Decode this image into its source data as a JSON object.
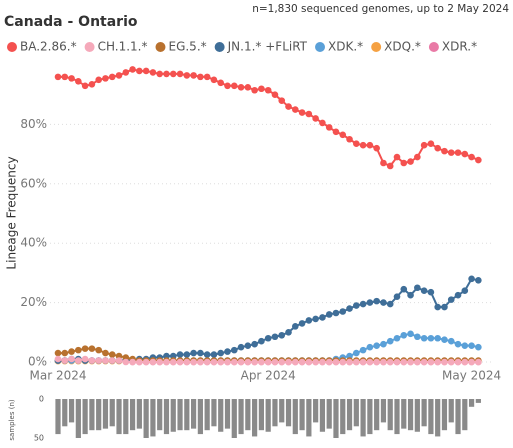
{
  "chart_data": [
    {
      "type": "line",
      "title": "Canada - Ontario",
      "subtitle": "n=1,830 sequenced genomes, up to 2 May 2024",
      "y_label": "Lineage Frequency",
      "categories": [
        "Mar 2024",
        null,
        null,
        null,
        null,
        null,
        null,
        null,
        null,
        null,
        null,
        null,
        null,
        null,
        null,
        null,
        null,
        null,
        null,
        null,
        null,
        null,
        null,
        null,
        null,
        null,
        null,
        null,
        null,
        null,
        null,
        "Apr 2024",
        null,
        null,
        null,
        null,
        null,
        null,
        null,
        null,
        null,
        null,
        null,
        null,
        null,
        null,
        null,
        null,
        null,
        null,
        null,
        null,
        null,
        null,
        null,
        null,
        null,
        null,
        null,
        null,
        null,
        "May 2024",
        null
      ],
      "ylim": [
        0,
        100
      ],
      "yticks": [
        {
          "value": 0,
          "label": "0%"
        },
        {
          "value": 20,
          "label": "20%"
        },
        {
          "value": 40,
          "label": "40%"
        },
        {
          "value": 60,
          "label": "60%"
        },
        {
          "value": 80,
          "label": "80%"
        }
      ],
      "grid": true,
      "series": [
        {
          "name": "BA.2.86.*",
          "color": "#f4514f",
          "values": [
            96,
            96,
            95.5,
            94.5,
            93,
            93.5,
            95,
            95.5,
            96,
            96.5,
            97.5,
            98.5,
            98,
            98,
            97.5,
            97,
            97,
            97,
            97,
            96.5,
            96.5,
            96,
            96,
            95,
            94,
            93,
            93,
            92.5,
            92.5,
            91.5,
            92,
            91.5,
            90,
            88,
            86,
            85,
            84,
            83.5,
            82,
            80.5,
            79,
            77.5,
            76.5,
            75,
            73.5,
            73,
            73,
            72,
            67,
            66,
            69,
            67,
            67.5,
            69,
            73,
            73.5,
            72,
            71,
            70.5,
            70.5,
            70,
            69,
            68
          ]
        },
        {
          "name": "CH.1.1.*",
          "color": "#f5a9ba",
          "values": [
            1,
            0.5,
            1,
            0.5,
            1,
            0.5,
            0.5,
            0.5,
            0.5,
            0.5,
            0,
            0,
            0,
            0,
            0,
            0,
            0,
            0,
            0,
            0,
            0,
            0,
            0,
            0,
            0,
            0,
            0,
            0,
            0,
            0,
            0,
            0,
            0,
            0,
            0,
            0,
            0,
            0,
            0,
            0,
            0,
            0,
            0,
            0,
            0,
            0,
            0,
            0,
            0,
            0,
            0,
            0,
            0,
            0,
            0,
            0,
            0,
            0,
            0,
            0,
            0,
            0,
            0
          ]
        },
        {
          "name": "EG.5.*",
          "color": "#b8712e",
          "values": [
            3,
            3,
            3.5,
            4,
            4.5,
            4.5,
            4,
            3,
            2.5,
            2,
            1.5,
            1,
            0.5,
            0.5,
            0.5,
            0.5,
            0.5,
            0.5,
            0.5,
            0.5,
            0.5,
            0.5,
            0.5,
            0.5,
            0.5,
            0.5,
            0.5,
            0.5,
            0.5,
            0.5,
            0.5,
            0.5,
            0.5,
            0.5,
            0.5,
            0.5,
            0.5,
            0.5,
            0.5,
            0.5,
            0.5,
            0.5,
            0.5,
            0.5,
            0.5,
            0.5,
            0.5,
            0.5,
            0.5,
            0.5,
            0.5,
            0.5,
            0.5,
            0.5,
            0.5,
            0.5,
            0.5,
            0.5,
            0.5,
            0.5,
            0.5,
            0.5,
            0.5
          ]
        },
        {
          "name": "JN.1.* +FLiRT",
          "color": "#3f6e98",
          "values": [
            0.5,
            0.5,
            1,
            1,
            0.5,
            0.5,
            0.5,
            0.5,
            0.5,
            0.5,
            0.5,
            0.5,
            1,
            1,
            1.5,
            1.5,
            2,
            2,
            2.5,
            2.5,
            3,
            3,
            2.5,
            2.5,
            3,
            3.5,
            4,
            5,
            5.5,
            6,
            7,
            8,
            8.5,
            9,
            10,
            12,
            13,
            14,
            14.5,
            15,
            16,
            16.5,
            17,
            18,
            19,
            19.5,
            20,
            20.5,
            20,
            19.5,
            22,
            24.5,
            22.5,
            25,
            24,
            23.5,
            18.5,
            18.5,
            21,
            22.5,
            24,
            28,
            27.5
          ]
        },
        {
          "name": "XDK.*",
          "color": "#5aa0d8",
          "values": [
            0.5,
            0.5,
            0.5,
            0.5,
            0.5,
            0.5,
            0.5,
            0.5,
            0.5,
            0.5,
            0.5,
            0.5,
            0.5,
            0.5,
            0.5,
            0.5,
            0.5,
            0.5,
            0.5,
            0.5,
            0.5,
            0.5,
            0.5,
            0.5,
            0.5,
            0.5,
            0.5,
            0.5,
            0.5,
            0.5,
            0.5,
            0.5,
            0.5,
            0.5,
            0.5,
            0.5,
            0.5,
            0.5,
            0.5,
            0.5,
            0.5,
            1,
            1.5,
            2,
            3,
            4,
            5,
            5.5,
            6,
            7,
            8,
            9,
            9.5,
            8.5,
            8,
            8,
            8,
            7.5,
            7,
            6,
            5.5,
            5.5,
            5
          ]
        },
        {
          "name": "XDQ.*",
          "color": "#f5a142",
          "values": [
            0.3,
            0.3,
            0.3,
            0.3,
            0.3,
            0.3,
            0.3,
            0.3,
            0.3,
            0.3,
            0.3,
            0.3,
            0.3,
            0.3,
            0.3,
            0.3,
            0.3,
            0.3,
            0.3,
            0.3,
            0.3,
            0.3,
            0.3,
            0.3,
            0.3,
            0.3,
            0.3,
            0.3,
            0.3,
            0.3,
            0.3,
            0.3,
            0.3,
            0.3,
            0.3,
            0.3,
            0.3,
            0.3,
            0.3,
            0.3,
            0.3,
            0.3,
            0.3,
            0.3,
            0.3,
            0.3,
            0.3,
            0.3,
            0.3,
            0.3,
            0.3,
            0.3,
            0.3,
            0.3,
            0.3,
            0.3,
            0.3,
            0.3,
            0.3,
            0.3,
            0.3,
            0.3,
            0.3
          ]
        },
        {
          "name": "XDR.*",
          "color": "#e97aa6",
          "values": [
            0.5,
            0.5,
            0.5,
            0.5,
            0.5,
            0.5,
            0.5,
            0.5,
            0.5,
            0.5,
            0.5,
            0,
            0,
            0,
            0,
            0,
            0,
            0,
            0,
            0,
            0,
            0,
            0,
            0,
            0,
            0,
            0,
            0,
            0,
            0,
            0,
            0,
            0,
            0,
            0,
            0,
            0,
            0,
            0,
            0,
            0,
            0,
            0,
            0,
            0,
            0,
            0,
            0,
            0,
            0,
            0,
            0,
            0,
            0,
            0,
            0,
            0,
            0,
            0,
            0,
            0,
            0,
            0
          ]
        }
      ]
    },
    {
      "type": "bar",
      "y_label": "samples (n)",
      "color": "#8a8a8a",
      "ylim": [
        0,
        50
      ],
      "yticks": [
        0,
        50
      ],
      "values": [
        45,
        35,
        30,
        50,
        45,
        40,
        40,
        38,
        35,
        45,
        45,
        40,
        38,
        50,
        48,
        40,
        45,
        42,
        40,
        40,
        38,
        45,
        40,
        35,
        42,
        38,
        50,
        45,
        40,
        48,
        40,
        42,
        35,
        30,
        35,
        45,
        40,
        48,
        30,
        42,
        38,
        50,
        45,
        40,
        35,
        48,
        45,
        40,
        30,
        40,
        45,
        38,
        40,
        42,
        35,
        45,
        48,
        40,
        30,
        45,
        40,
        10,
        5
      ]
    }
  ]
}
